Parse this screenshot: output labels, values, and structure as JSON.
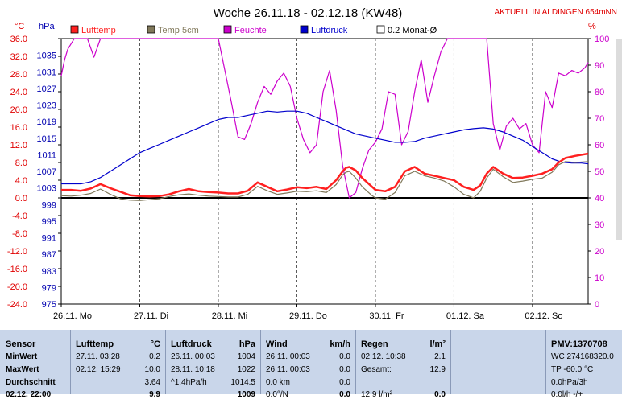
{
  "chart_data": {
    "type": "line",
    "title": "Woche 26.11.18 - 02.12.18 (KW48)",
    "station": "AKTUELL IN ALDINGEN 654mNN",
    "left_unit_1": "°C",
    "left_unit_2": "hPa",
    "right_unit": "%",
    "temp_ticks": [
      "36.0",
      "32.0",
      "28.0",
      "24.0",
      "20.0",
      "16.0",
      "12.0",
      "8.0",
      "4.0",
      "0.0",
      "-4.0",
      "-8.0",
      "-12.0",
      "-16.0",
      "-20.0",
      "-24.0"
    ],
    "pressure_ticks": [
      "1035",
      "1031",
      "1027",
      "1023",
      "1019",
      "1015",
      "1011",
      "1007",
      "1003",
      "999",
      "995",
      "991",
      "987",
      "983",
      "979",
      "975"
    ],
    "humidity_ticks": [
      "100",
      "90",
      "80",
      "70",
      "60",
      "50",
      "40",
      "30",
      "20",
      "10",
      "0"
    ],
    "temp_range": [
      -24,
      36
    ],
    "pressure_range": [
      975,
      1039
    ],
    "humidity_range": [
      0,
      100
    ],
    "x_range": [
      0,
      161
    ],
    "x_ticks": [
      0,
      24,
      48,
      72,
      96,
      120,
      144
    ],
    "x_tick_labels": [
      "26.11. Mo",
      "27.11. Di",
      "28.11. Mi",
      "29.11. Do",
      "30.11. Fr",
      "01.12. Sa",
      "02.12. So"
    ],
    "legend": [
      {
        "label": "Lufttemp",
        "color": "#ff2020"
      },
      {
        "label": "Temp 5cm",
        "color": "#80785a"
      },
      {
        "label": "Feuchte",
        "color": "#cc00cc"
      },
      {
        "label": "Luftdruck",
        "color": "#0000cc"
      },
      {
        "label": "0.2 Monat-Ø",
        "color": "#ffffff"
      }
    ],
    "series": [
      {
        "name": "Lufttemp",
        "axis": "temp",
        "color": "#ff2020",
        "x": [
          0,
          3,
          6,
          9,
          12,
          15,
          18,
          21,
          24,
          27,
          30,
          33,
          36,
          39,
          42,
          45,
          48,
          51,
          54,
          57,
          60,
          63,
          66,
          69,
          72,
          75,
          78,
          81,
          84,
          86,
          87,
          88,
          90,
          92,
          95,
          96,
          99,
          102,
          105,
          108,
          111,
          114,
          117,
          120,
          123,
          126,
          128,
          130,
          132,
          135,
          138,
          141,
          144,
          147,
          150,
          152,
          154,
          157,
          161
        ],
        "y": [
          1.8,
          1.8,
          1.6,
          2.1,
          3.1,
          2.2,
          1.4,
          0.6,
          0.4,
          0.3,
          0.4,
          0.8,
          1.5,
          2.0,
          1.5,
          1.3,
          1.2,
          1.0,
          1.0,
          1.6,
          3.5,
          2.5,
          1.5,
          1.9,
          2.4,
          2.2,
          2.5,
          2.0,
          4.0,
          6.0,
          6.8,
          7.0,
          6.2,
          4.5,
          2.5,
          1.8,
          1.5,
          2.5,
          6.0,
          7.0,
          5.5,
          5.0,
          4.5,
          4.0,
          2.5,
          1.8,
          2.8,
          5.5,
          7.0,
          5.5,
          4.5,
          4.6,
          5.0,
          5.5,
          6.5,
          8.0,
          9.0,
          9.5,
          10.0
        ]
      },
      {
        "name": "Temp 5cm",
        "axis": "temp",
        "color": "#80785a",
        "x": [
          0,
          3,
          6,
          9,
          12,
          15,
          18,
          21,
          24,
          27,
          30,
          33,
          36,
          39,
          42,
          45,
          48,
          51,
          54,
          57,
          60,
          63,
          66,
          69,
          72,
          75,
          78,
          81,
          84,
          86,
          87,
          88,
          90,
          92,
          95,
          96,
          99,
          102,
          105,
          108,
          111,
          114,
          117,
          120,
          123,
          126,
          128,
          130,
          132,
          135,
          138,
          141,
          144,
          147,
          150,
          152,
          154,
          157,
          161
        ],
        "y": [
          0.5,
          0.4,
          0.6,
          1.0,
          2.0,
          0.8,
          -0.2,
          -0.5,
          -0.6,
          -0.4,
          -0.2,
          0.3,
          0.7,
          0.9,
          0.6,
          0.4,
          0.3,
          0.2,
          0.2,
          0.8,
          2.6,
          1.6,
          0.8,
          1.1,
          1.5,
          1.4,
          1.6,
          1.2,
          3.0,
          5.2,
          5.8,
          6.0,
          4.5,
          2.5,
          0.5,
          0.0,
          -0.3,
          1.2,
          5.0,
          6.0,
          5.0,
          4.5,
          3.8,
          2.5,
          0.8,
          0.0,
          1.5,
          4.5,
          6.5,
          4.8,
          3.5,
          3.8,
          4.2,
          4.5,
          5.8,
          7.5,
          8.2,
          8.0,
          8.2
        ]
      },
      {
        "name": "Feuchte",
        "axis": "hum",
        "color": "#cc00cc",
        "x": [
          0,
          1,
          2,
          3,
          4,
          5,
          6,
          8,
          10,
          12,
          14,
          16,
          18,
          20,
          24,
          30,
          36,
          42,
          48,
          50,
          52,
          54,
          56,
          58,
          60,
          62,
          64,
          66,
          68,
          70,
          72,
          74,
          76,
          78,
          80,
          82,
          84,
          86,
          88,
          90,
          92,
          94,
          96,
          98,
          100,
          102,
          104,
          106,
          108,
          110,
          112,
          114,
          116,
          118,
          120,
          122,
          124,
          126,
          128,
          130,
          132,
          134,
          136,
          138,
          140,
          142,
          144,
          146,
          148,
          150,
          152,
          154,
          156,
          158,
          160,
          161
        ],
        "y": [
          86,
          92,
          96,
          98,
          100,
          100,
          100,
          100,
          93,
          100,
          100,
          100,
          100,
          100,
          100,
          100,
          100,
          100,
          100,
          88,
          76,
          63,
          62,
          68,
          76,
          82,
          79,
          84,
          87,
          82,
          70,
          62,
          57,
          60,
          80,
          88,
          73,
          52,
          40,
          42,
          51,
          58,
          61,
          66,
          80,
          79,
          60,
          65,
          80,
          92,
          76,
          86,
          95,
          100,
          100,
          100,
          100,
          100,
          100,
          100,
          68,
          58,
          67,
          70,
          66,
          68,
          60,
          57,
          80,
          74,
          87,
          86,
          88,
          87,
          89,
          91
        ]
      },
      {
        "name": "Luftdruck",
        "axis": "press",
        "color": "#0000cc",
        "x": [
          0,
          3,
          6,
          9,
          12,
          15,
          18,
          21,
          24,
          27,
          30,
          33,
          36,
          39,
          42,
          45,
          48,
          51,
          54,
          57,
          60,
          63,
          66,
          69,
          72,
          75,
          78,
          81,
          84,
          87,
          90,
          93,
          96,
          99,
          102,
          105,
          108,
          111,
          114,
          117,
          120,
          123,
          126,
          129,
          132,
          135,
          138,
          141,
          144,
          147,
          150,
          153,
          156,
          159,
          161
        ],
        "y": [
          1004,
          1004,
          1004,
          1004.5,
          1005.5,
          1007,
          1008.5,
          1010,
          1011.5,
          1012.5,
          1013.5,
          1014.5,
          1015.5,
          1016.5,
          1017.5,
          1018.5,
          1019.5,
          1020,
          1020,
          1020.5,
          1021,
          1021.5,
          1021.3,
          1021.5,
          1021.5,
          1021,
          1020,
          1019,
          1018,
          1017,
          1016,
          1015.5,
          1015,
          1014.5,
          1014,
          1014,
          1014.2,
          1015,
          1015.5,
          1016,
          1016.5,
          1017,
          1017.3,
          1017.5,
          1017.2,
          1016.5,
          1015.5,
          1014.5,
          1013,
          1011.5,
          1010,
          1009.2,
          1009,
          1009,
          1008.8
        ]
      }
    ]
  },
  "panel": {
    "sensor": {
      "header": "Sensor",
      "r1": "MinWert",
      "r2": "MaxWert",
      "r3": "Durchschnitt",
      "r4": "02.12. 22:00"
    },
    "lufttemp": {
      "header": "Lufttemp",
      "unit": "°C",
      "r1a": "27.11.  03:28",
      "r1b": "0.2",
      "r2a": "02.12.  15:29",
      "r2b": "10.0",
      "r3b": "3.64",
      "r4b": "9.9"
    },
    "luftdruck": {
      "header": "Luftdruck",
      "unit": "hPa",
      "r1a": "26.11.  00:03",
      "r1b": "1004",
      "r2a": "28.11.  10:18",
      "r2b": "1022",
      "r3a": "^1.4hPa/h",
      "r3b": "1014.5",
      "r4b": "1009"
    },
    "wind": {
      "header": "Wind",
      "unit": "km/h",
      "r1a": "26.11.  00:03",
      "r1b": "0.0",
      "r2a": "26.11.  00:03",
      "r2b": "0.0",
      "r3a": "0.0 km",
      "r3b": "0.0",
      "r4a": "0.0°/N",
      "r4b": "0.0"
    },
    "regen": {
      "header": "Regen",
      "unit": "l/m²",
      "r1a": "02.12.  10:38",
      "r1b": "2.1",
      "r2a": "Gesamt:",
      "r2b": "12.9",
      "r4a": "12.9 l/m²",
      "r4b": "0.0"
    },
    "pmv": {
      "header": "PMV:1370708",
      "r1": "WC 274168320.0",
      "r2": "TP -60.0 °C",
      "r3": "0.0hPa/3h",
      "r4": "0.0l/h   -/+"
    }
  }
}
